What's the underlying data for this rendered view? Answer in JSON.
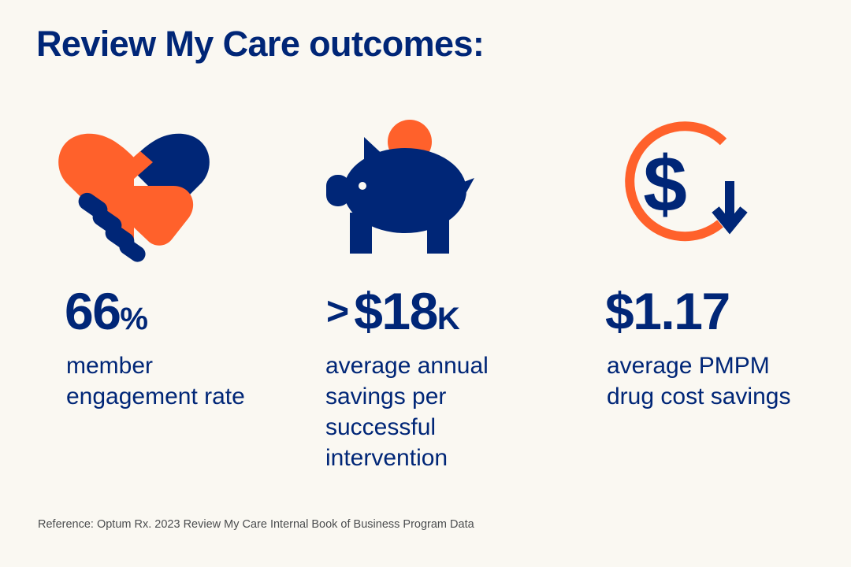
{
  "title": "Review My Care outcomes:",
  "colors": {
    "navy": "#002677",
    "orange": "#FF612B",
    "background": "#FAF8F2"
  },
  "stats": [
    {
      "icon": "heart-handshake-icon",
      "prefix": "",
      "value": "66",
      "unit": "%",
      "description": [
        "member",
        "engagement rate"
      ]
    },
    {
      "icon": "piggy-bank-icon",
      "prefix": ">",
      "value": "$18",
      "unit": "K",
      "description": [
        "average annual",
        "savings per",
        "successful",
        "intervention"
      ]
    },
    {
      "icon": "dollar-decrease-icon",
      "prefix": "",
      "value": "$1.17",
      "unit": "",
      "description": [
        "average PMPM",
        "drug cost savings"
      ]
    }
  ],
  "reference": "Reference: Optum Rx. 2023 Review My Care Internal Book of Business Program Data"
}
